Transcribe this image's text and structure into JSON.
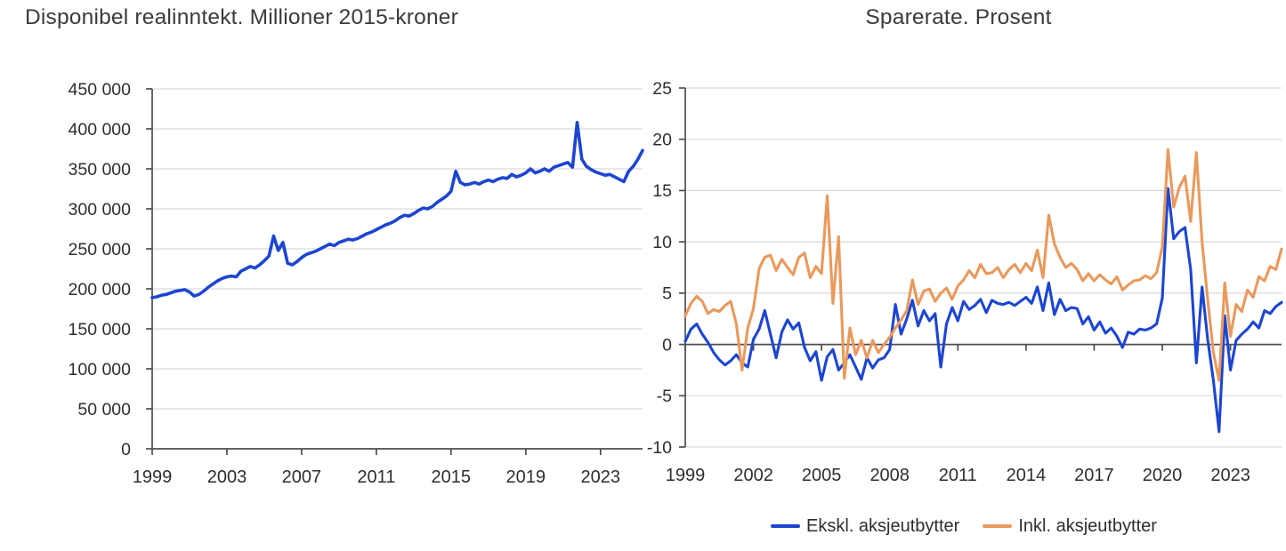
{
  "style": {
    "grid_color": "#d9d9d9",
    "axis_color": "#4d4d52",
    "text_color": "#2e2e2e",
    "accent_blue": "#1c45d1",
    "accent_orange": "#e9995c"
  },
  "legend": {
    "items": [
      {
        "label": "Ekskl. aksjeutbytter",
        "color": "#1c45d1"
      },
      {
        "label": "Inkl. aksjeutbytter",
        "color": "#e9995c"
      }
    ]
  },
  "chart_data": [
    {
      "type": "line",
      "title": "Disponibel realinntekt. Millioner 2015-kroner",
      "xlabel": "",
      "ylabel": "",
      "x_start": 1999,
      "x_step": 0.25,
      "x_ticks": [
        1999,
        2003,
        2007,
        2011,
        2015,
        2019,
        2023
      ],
      "ylim": [
        0,
        450000
      ],
      "y_ticks": [
        0,
        50000,
        100000,
        150000,
        200000,
        250000,
        300000,
        350000,
        400000,
        450000
      ],
      "y_tick_labels": [
        "0",
        "50 000",
        "100 000",
        "150 000",
        "200 000",
        "250 000",
        "300 000",
        "350 000",
        "400 000",
        "450 000"
      ],
      "axis_at_y": 0,
      "grid": true,
      "legend_position": "none",
      "line_width": 3.6,
      "series": [
        {
          "name": "Disponibel realinntekt",
          "color": "#1c45d1",
          "values": [
            189000,
            190000,
            192000,
            193000,
            195000,
            197000,
            198000,
            199000,
            196000,
            191000,
            193000,
            197000,
            202000,
            206000,
            210000,
            213000,
            215000,
            216000,
            215000,
            222000,
            225000,
            228000,
            226000,
            230000,
            235000,
            241000,
            266000,
            248000,
            258000,
            232000,
            230000,
            234000,
            239000,
            243000,
            245000,
            247000,
            250000,
            253000,
            256000,
            254000,
            258000,
            260000,
            262000,
            261000,
            263000,
            266000,
            269000,
            271000,
            274000,
            277000,
            280000,
            282000,
            285000,
            289000,
            292000,
            291000,
            294000,
            298000,
            301000,
            300000,
            303000,
            308000,
            312000,
            316000,
            322000,
            347000,
            333000,
            330000,
            331000,
            333000,
            331000,
            334000,
            336000,
            334000,
            337000,
            339000,
            338000,
            343000,
            340000,
            342000,
            345000,
            350000,
            345000,
            347000,
            350000,
            347000,
            352000,
            354000,
            356000,
            358000,
            352000,
            408000,
            362000,
            353000,
            349000,
            346000,
            344000,
            342000,
            343000,
            340000,
            337000,
            334000,
            347000,
            353000,
            362000,
            373000
          ]
        }
      ]
    },
    {
      "type": "line",
      "title": "Sparerate. Prosent",
      "xlabel": "",
      "ylabel": "",
      "x_start": 1999,
      "x_step": 0.25,
      "x_ticks": [
        1999,
        2002,
        2005,
        2008,
        2011,
        2014,
        2017,
        2020,
        2023
      ],
      "ylim": [
        -10,
        25
      ],
      "y_ticks": [
        -10,
        -5,
        0,
        5,
        10,
        15,
        20,
        25
      ],
      "y_tick_labels": [
        "-10",
        "-5",
        "0",
        "5",
        "10",
        "15",
        "20",
        "25"
      ],
      "axis_at_y": 0,
      "grid": true,
      "legend_position": "bottom-center",
      "line_width": 3.1,
      "series": [
        {
          "name": "Ekskl. aksjeutbytter",
          "color": "#1c45d1",
          "values": [
            0.3,
            1.5,
            2.0,
            1.0,
            0.2,
            -0.8,
            -1.5,
            -2.0,
            -1.6,
            -1.0,
            -1.8,
            -2.2,
            0.5,
            1.5,
            3.3,
            1.0,
            -1.3,
            1.2,
            2.4,
            1.5,
            2.1,
            -0.3,
            -1.6,
            -0.7,
            -3.5,
            -1.2,
            -0.5,
            -2.5,
            -1.8,
            -1.0,
            -2.2,
            -3.4,
            -1.3,
            -2.3,
            -1.5,
            -1.3,
            -0.5,
            3.9,
            1.0,
            2.5,
            4.3,
            1.8,
            3.3,
            2.3,
            3.0,
            -2.2,
            2.0,
            3.6,
            2.3,
            4.2,
            3.4,
            3.8,
            4.4,
            3.1,
            4.3,
            4.0,
            3.9,
            4.1,
            3.8,
            4.2,
            4.6,
            4.0,
            5.6,
            3.3,
            6.0,
            2.9,
            4.4,
            3.3,
            3.6,
            3.5,
            2.0,
            2.7,
            1.4,
            2.2,
            1.1,
            1.6,
            0.8,
            -0.3,
            1.2,
            1.0,
            1.5,
            1.4,
            1.6,
            2.0,
            4.5,
            15.2,
            10.3,
            11.0,
            11.4,
            7.3,
            -1.8,
            5.6,
            0.5,
            -3.5,
            -8.5,
            2.8,
            -2.5,
            0.4,
            1.0,
            1.5,
            2.2,
            1.6,
            3.3,
            3.0,
            3.7,
            4.1
          ]
        },
        {
          "name": "Inkl. aksjeutbytter",
          "color": "#e9995c",
          "values": [
            2.8,
            4.0,
            4.7,
            4.2,
            3.0,
            3.4,
            3.2,
            3.8,
            4.2,
            2.0,
            -2.5,
            1.6,
            3.5,
            7.4,
            8.5,
            8.7,
            7.2,
            8.3,
            7.5,
            6.8,
            8.5,
            8.9,
            6.5,
            7.6,
            6.9,
            14.5,
            4.0,
            10.5,
            -3.3,
            1.6,
            -1.0,
            0.4,
            -1.3,
            0.4,
            -0.8,
            0.0,
            0.7,
            1.6,
            2.4,
            3.3,
            6.3,
            3.9,
            5.2,
            5.4,
            4.2,
            5.0,
            5.5,
            4.4,
            5.7,
            6.3,
            7.2,
            6.5,
            7.8,
            6.9,
            7.0,
            7.5,
            6.5,
            7.3,
            7.8,
            7.0,
            7.9,
            7.2,
            9.2,
            6.5,
            12.6,
            9.8,
            8.5,
            7.5,
            7.9,
            7.3,
            6.2,
            6.9,
            6.2,
            6.8,
            6.3,
            5.9,
            6.6,
            5.3,
            5.8,
            6.2,
            6.3,
            6.7,
            6.4,
            7.0,
            9.5,
            19.0,
            13.4,
            15.3,
            16.4,
            12.0,
            18.7,
            10.0,
            4.4,
            -0.8,
            -3.5,
            6.0,
            0.8,
            3.9,
            3.2,
            5.3,
            4.6,
            6.6,
            6.2,
            7.6,
            7.3,
            9.3
          ]
        }
      ]
    }
  ]
}
